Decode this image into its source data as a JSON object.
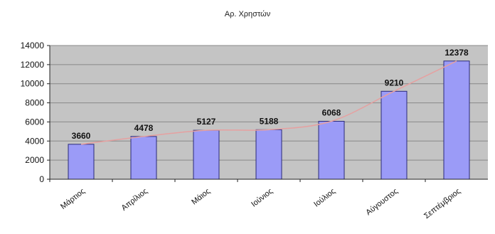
{
  "chart_data": {
    "type": "bar",
    "title": "Αρ. Χρηστών",
    "xlabel": "",
    "ylabel": "",
    "categories": [
      "Μάρτιος",
      "Απρίλιος",
      "Μάιος",
      "Ιούνιος",
      "Ιούλιος",
      "Αύγουστος",
      "Σεπτέμβριος"
    ],
    "values": [
      3660,
      4478,
      5127,
      5188,
      6068,
      9210,
      12378
    ],
    "data_labels": [
      "3660",
      "4478",
      "5127",
      "5188",
      "6068",
      "9210",
      "12378"
    ],
    "ylim": [
      0,
      14000
    ],
    "yticks": [
      0,
      2000,
      4000,
      6000,
      8000,
      10000,
      12000,
      14000
    ],
    "ytick_labels": [
      "0",
      "2000",
      "4000",
      "6000",
      "8000",
      "10000",
      "12000",
      "14000"
    ],
    "grid": true,
    "legend": "none",
    "trendline": true,
    "colors": {
      "bar_fill": "#9b9bf7",
      "bar_stroke": "#2a2a7a",
      "plot_bg": "#c4c4c4",
      "gridline": "#888888",
      "trendline": "#e6a0a0"
    }
  }
}
